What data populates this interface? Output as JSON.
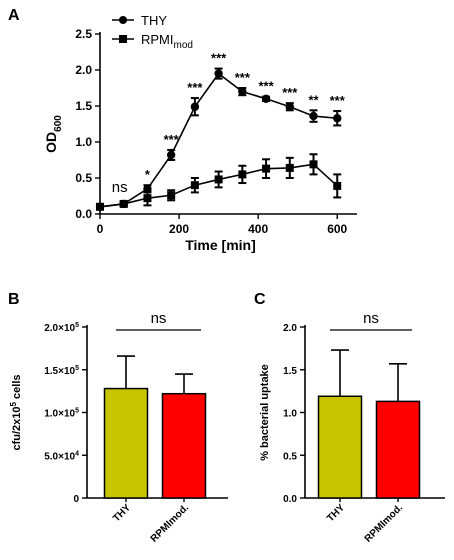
{
  "chart_data": [
    {
      "panel": "A",
      "type": "line",
      "xlabel": "Time [min]",
      "ylabel": "OD",
      "ylabel_sub": "600",
      "xlim": [
        0,
        650
      ],
      "ylim": [
        0,
        2.5
      ],
      "xticks": [
        0,
        200,
        400,
        600
      ],
      "yticks": [
        "0.0",
        "0.5",
        "1.0",
        "1.5",
        "2.0",
        "2.5"
      ],
      "legend": "top-left",
      "series": [
        {
          "name": "THY",
          "marker": "circle",
          "x": [
            0,
            60,
            120,
            180,
            240,
            300,
            360,
            420,
            480,
            540,
            600
          ],
          "y": [
            0.1,
            0.14,
            0.35,
            0.82,
            1.49,
            1.95,
            1.7,
            1.6,
            1.49,
            1.36,
            1.33
          ],
          "err": [
            0.03,
            0.03,
            0.05,
            0.07,
            0.12,
            0.07,
            0.05,
            0.03,
            0.05,
            0.08,
            0.1
          ]
        },
        {
          "name": "RPMI",
          "name_sub": "mod",
          "marker": "square",
          "x": [
            0,
            60,
            120,
            180,
            240,
            300,
            360,
            420,
            480,
            540,
            600
          ],
          "y": [
            0.1,
            0.14,
            0.22,
            0.26,
            0.4,
            0.48,
            0.55,
            0.63,
            0.64,
            0.69,
            0.39
          ],
          "err": [
            0.03,
            0.03,
            0.1,
            0.07,
            0.1,
            0.11,
            0.12,
            0.13,
            0.14,
            0.14,
            0.16
          ]
        }
      ],
      "annotations": [
        {
          "x": 60,
          "text": "ns"
        },
        {
          "x": 120,
          "text": "*"
        },
        {
          "x": 180,
          "text": "***"
        },
        {
          "x": 240,
          "text": "***"
        },
        {
          "x": 300,
          "text": "***"
        },
        {
          "x": 360,
          "text": "***"
        },
        {
          "x": 420,
          "text": "***"
        },
        {
          "x": 480,
          "text": "***"
        },
        {
          "x": 540,
          "text": "**"
        },
        {
          "x": 600,
          "text": "***"
        }
      ]
    },
    {
      "panel": "B",
      "type": "bar",
      "ylabel": "cfu/2x10",
      "ylabel_sup": "5",
      "ylabel_tail": " cells",
      "ylim": [
        0,
        200000
      ],
      "yticks": [
        {
          "v": 0,
          "label": "0"
        },
        {
          "v": 50000,
          "label": "5.0×10",
          "sup": "4"
        },
        {
          "v": 100000,
          "label": "1.0×10",
          "sup": "5"
        },
        {
          "v": 150000,
          "label": "1.5×10",
          "sup": "5"
        },
        {
          "v": 200000,
          "label": "2.0×10",
          "sup": "5"
        }
      ],
      "categories": [
        "THY",
        "RPMImod."
      ],
      "values": [
        128000,
        122000
      ],
      "err": [
        38000,
        23000
      ],
      "colors": [
        "#c8c400",
        "#ff0000"
      ],
      "significance": "ns"
    },
    {
      "panel": "C",
      "type": "bar",
      "ylabel": "% bacterial uptake",
      "ylim": [
        0,
        2.0
      ],
      "yticks": [
        {
          "v": 0,
          "label": "0.0"
        },
        {
          "v": 0.5,
          "label": "0.5"
        },
        {
          "v": 1.0,
          "label": "1.0"
        },
        {
          "v": 1.5,
          "label": "1.5"
        },
        {
          "v": 2.0,
          "label": "2.0"
        }
      ],
      "categories": [
        "THY",
        "RPMImod."
      ],
      "values": [
        1.19,
        1.13
      ],
      "err": [
        0.54,
        0.44
      ],
      "colors": [
        "#c8c400",
        "#ff0000"
      ],
      "significance": "ns"
    }
  ]
}
